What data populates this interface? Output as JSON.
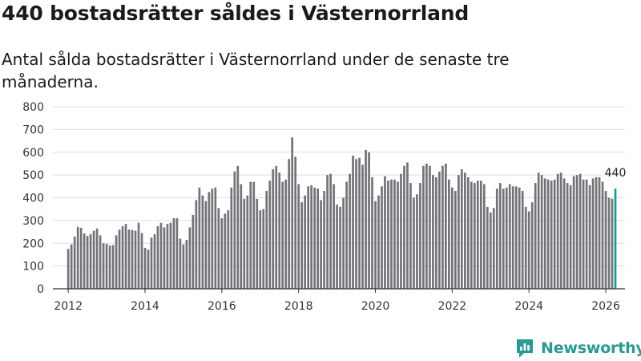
{
  "title": "440 bostadsrätter såldes i Västernorrland",
  "subtitle": "Antal sålda bostadsrätter i Västernorrland under de senaste tre månaderna.",
  "brand": {
    "name": "Newsworthy",
    "icon": "newsworthy-logo-icon"
  },
  "colors": {
    "bar": "#737279",
    "highlight": "#1f9a92",
    "grid": "#dddddd",
    "axis": "#333333",
    "brand": "#2a9a92"
  },
  "chart_data": {
    "type": "bar",
    "title": "Antal sålda bostadsrätter",
    "xlabel": "",
    "ylabel": "",
    "x_start": 2012.0,
    "x_step": 0.0833333,
    "ylim": [
      0,
      800
    ],
    "xlim": [
      2011.6,
      2026.5
    ],
    "yticks": [
      0,
      100,
      200,
      300,
      400,
      500,
      600,
      700,
      800
    ],
    "xticks": [
      2012,
      2014,
      2016,
      2018,
      2020,
      2022,
      2024,
      2026
    ],
    "grid": true,
    "values": [
      175,
      195,
      230,
      272,
      268,
      243,
      232,
      240,
      255,
      265,
      235,
      200,
      198,
      190,
      192,
      235,
      260,
      275,
      285,
      260,
      258,
      255,
      290,
      245,
      180,
      172,
      225,
      240,
      275,
      290,
      270,
      285,
      290,
      310,
      310,
      220,
      195,
      215,
      270,
      325,
      390,
      445,
      410,
      385,
      425,
      440,
      445,
      355,
      310,
      330,
      345,
      445,
      515,
      540,
      460,
      395,
      410,
      470,
      470,
      395,
      345,
      350,
      430,
      475,
      525,
      540,
      510,
      470,
      480,
      570,
      665,
      580,
      460,
      380,
      410,
      450,
      455,
      445,
      440,
      390,
      430,
      500,
      505,
      460,
      370,
      360,
      400,
      470,
      505,
      585,
      570,
      575,
      545,
      610,
      600,
      490,
      385,
      410,
      450,
      495,
      475,
      480,
      480,
      470,
      505,
      540,
      555,
      465,
      400,
      415,
      465,
      540,
      550,
      540,
      500,
      490,
      515,
      540,
      550,
      480,
      445,
      430,
      500,
      525,
      510,
      490,
      470,
      465,
      475,
      475,
      460,
      360,
      335,
      355,
      440,
      465,
      440,
      445,
      460,
      450,
      450,
      445,
      430,
      360,
      340,
      380,
      465,
      510,
      500,
      485,
      480,
      475,
      480,
      505,
      510,
      485,
      465,
      455,
      495,
      500,
      505,
      480,
      480,
      455,
      485,
      490,
      490,
      470,
      430,
      400,
      395,
      440
    ],
    "highlight_value": 440,
    "highlight_label": "440"
  }
}
